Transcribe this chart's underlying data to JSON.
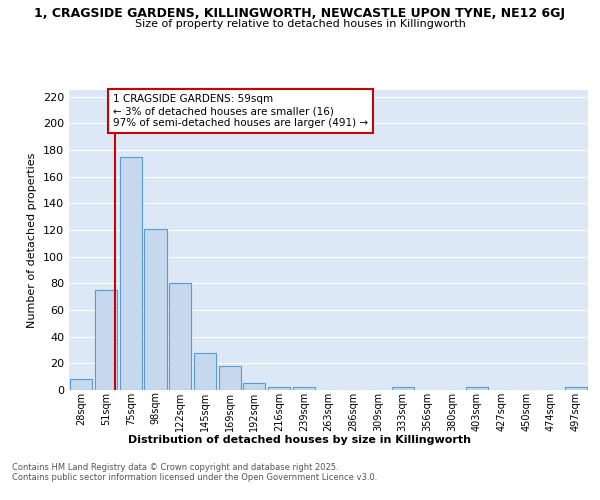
{
  "title": "1, CRAGSIDE GARDENS, KILLINGWORTH, NEWCASTLE UPON TYNE, NE12 6GJ",
  "subtitle": "Size of property relative to detached houses in Killingworth",
  "xlabel": "Distribution of detached houses by size in Killingworth",
  "ylabel": "Number of detached properties",
  "bar_labels": [
    "28sqm",
    "51sqm",
    "75sqm",
    "98sqm",
    "122sqm",
    "145sqm",
    "169sqm",
    "192sqm",
    "216sqm",
    "239sqm",
    "263sqm",
    "286sqm",
    "309sqm",
    "333sqm",
    "356sqm",
    "380sqm",
    "403sqm",
    "427sqm",
    "450sqm",
    "474sqm",
    "497sqm"
  ],
  "bar_values": [
    8,
    75,
    175,
    121,
    80,
    28,
    18,
    5,
    2,
    2,
    0,
    0,
    0,
    2,
    0,
    0,
    2,
    0,
    0,
    0,
    2
  ],
  "bar_color": "#c5d8ed",
  "bar_edge_color": "#5b9bd5",
  "ylim": [
    0,
    225
  ],
  "yticks": [
    0,
    20,
    40,
    60,
    80,
    100,
    120,
    140,
    160,
    180,
    200,
    220
  ],
  "vline_x": 1.35,
  "vline_color": "#cc0000",
  "annotation_text": "1 CRAGSIDE GARDENS: 59sqm\n← 3% of detached houses are smaller (16)\n97% of semi-detached houses are larger (491) →",
  "bg_color": "#dce8f5",
  "grid_color": "#ffffff",
  "footer_line1": "Contains HM Land Registry data © Crown copyright and database right 2025.",
  "footer_line2": "Contains public sector information licensed under the Open Government Licence v3.0."
}
